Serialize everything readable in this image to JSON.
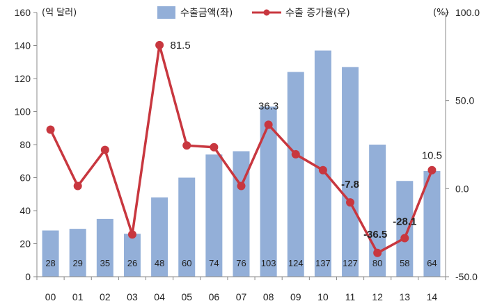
{
  "chart_data": {
    "type": "bar+line",
    "categories": [
      "00",
      "01",
      "02",
      "03",
      "04",
      "05",
      "06",
      "07",
      "08",
      "09",
      "10",
      "11",
      "12",
      "13",
      "14"
    ],
    "left_axis": {
      "unit_label": "(억 달러)",
      "ylim": [
        0,
        160
      ],
      "ticks": [
        "0",
        "20",
        "40",
        "60",
        "80",
        "100",
        "120",
        "140",
        "160"
      ]
    },
    "right_axis": {
      "unit_label": "(%)",
      "ylim": [
        -50,
        100
      ],
      "ticks": [
        "-50.0",
        "0.0",
        "50.0",
        "100.0"
      ]
    },
    "series": [
      {
        "name": "수출금액(좌)",
        "type": "bar",
        "axis": "left",
        "color": "#93afd8",
        "values": [
          28,
          29,
          35,
          26,
          48,
          60,
          74,
          76,
          103,
          124,
          137,
          127,
          80,
          58,
          64
        ],
        "labels": [
          "28",
          "29",
          "35",
          "26",
          "48",
          "60",
          "74",
          "76",
          "103",
          "124",
          "137",
          "127",
          "80",
          "58",
          "64"
        ]
      },
      {
        "name": "수출 증가율(우)",
        "type": "line",
        "axis": "right",
        "color": "#c8373f",
        "values": [
          33.5,
          1.5,
          22.0,
          -26.0,
          81.5,
          24.5,
          23.5,
          1.5,
          36.3,
          19.5,
          10.5,
          -7.8,
          -36.5,
          -28.1,
          10.5
        ]
      }
    ],
    "annotations": [
      {
        "index": 4,
        "text": "81.5",
        "bold": false
      },
      {
        "index": 8,
        "text": "36.3",
        "bold": false
      },
      {
        "index": 11,
        "text": "-7.8",
        "bold": true
      },
      {
        "index": 12,
        "text": "-36.5",
        "bold": true
      },
      {
        "index": 13,
        "text": "-28.1",
        "bold": true
      },
      {
        "index": 14,
        "text": "10.5",
        "bold": false
      }
    ],
    "legend": {
      "position": "top"
    },
    "grid": false
  }
}
